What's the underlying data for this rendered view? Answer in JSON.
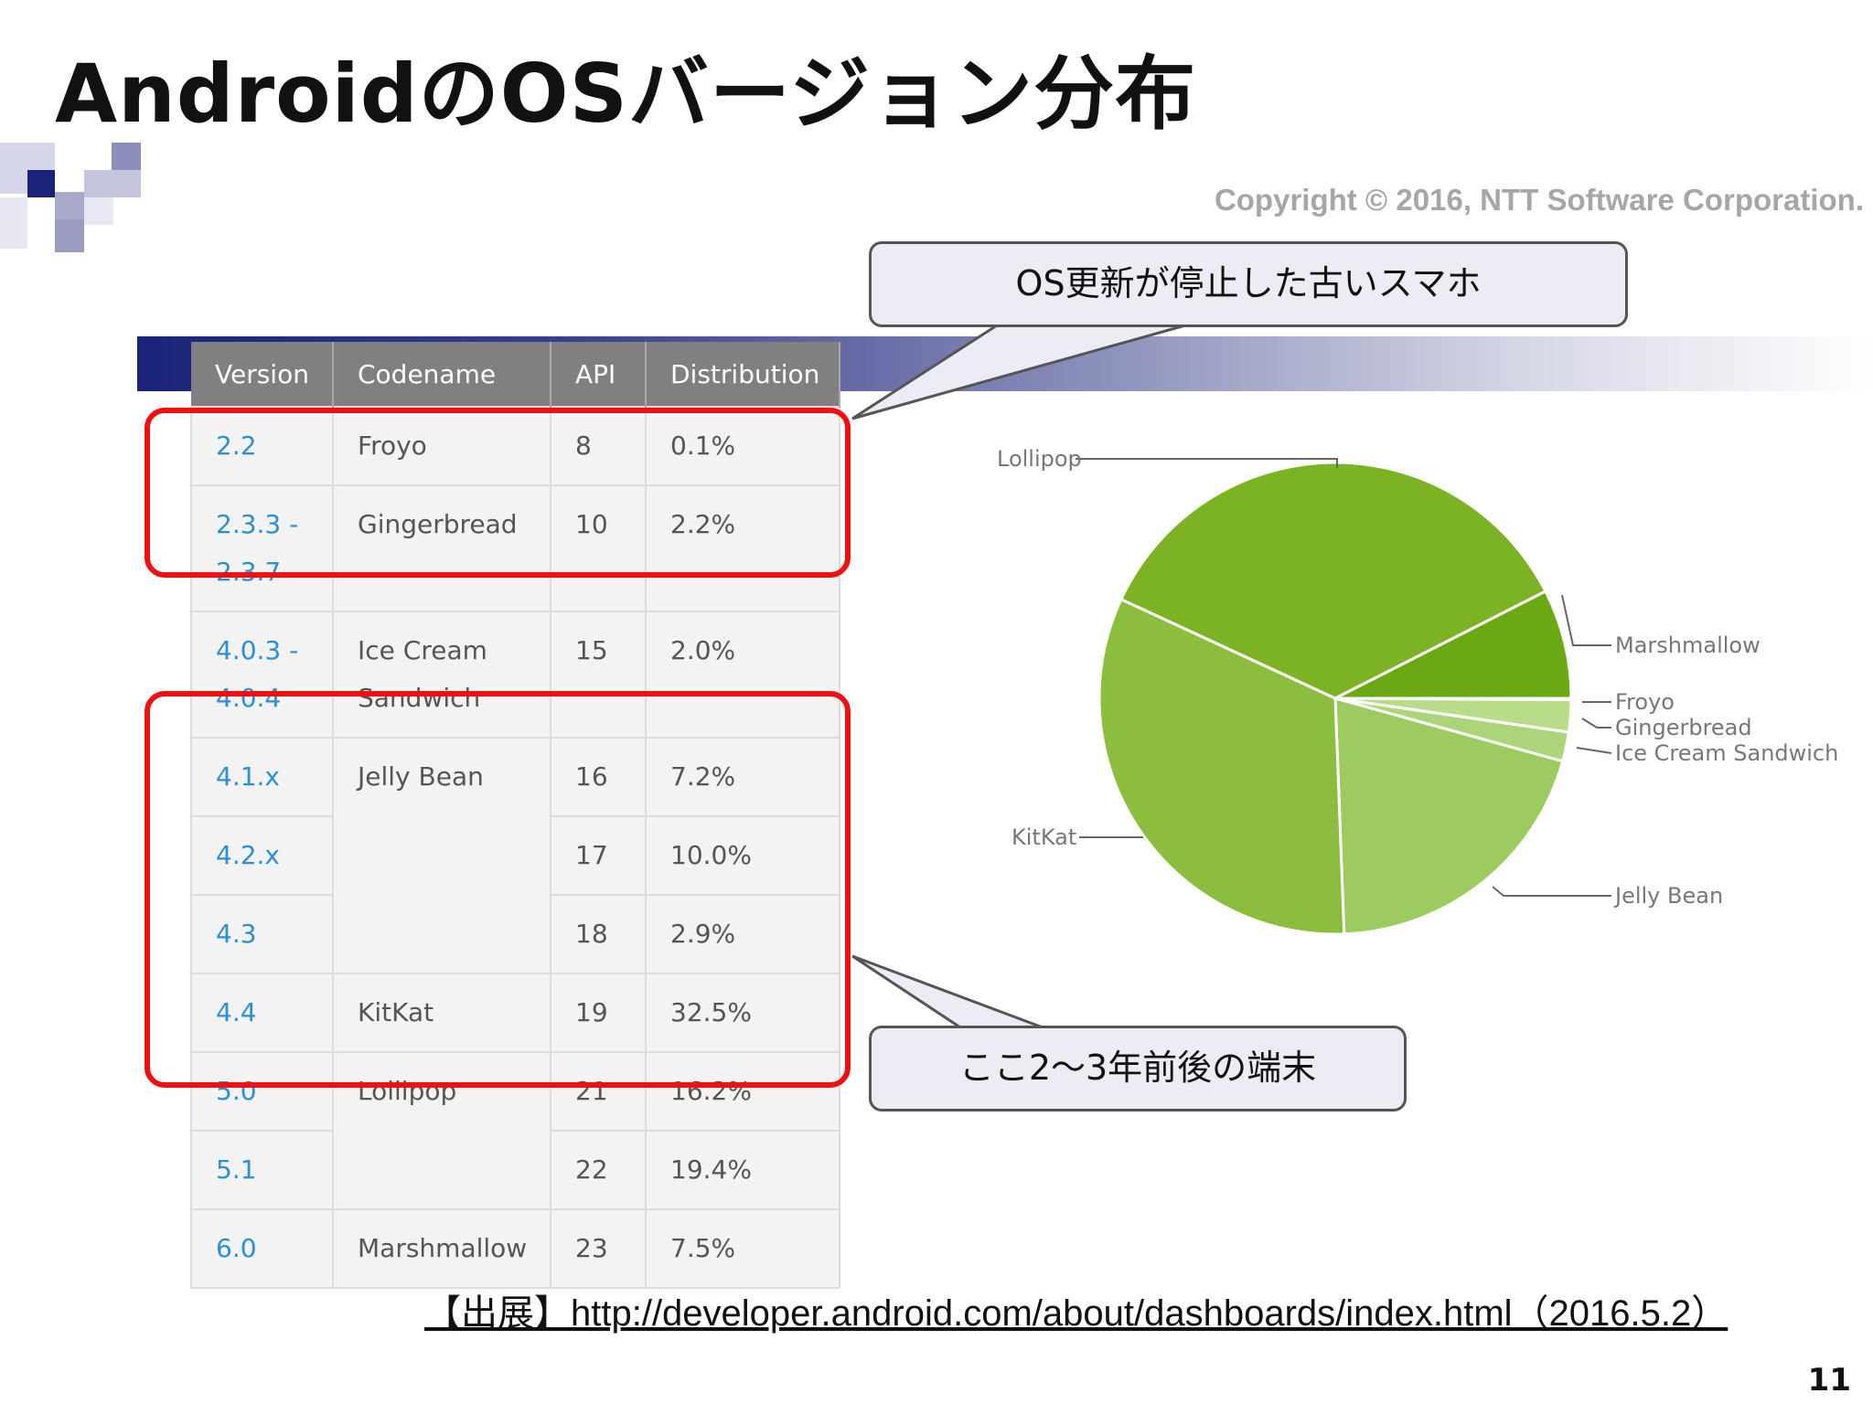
{
  "slide": {
    "title": "AndroidのOSバージョン分布",
    "copyright": "Copyright © 2016, NTT Software Corporation.",
    "source": "【出展】http://developer.android.com/about/dashboards/index.html（2016.5.2）",
    "page_number": "11"
  },
  "callouts": {
    "old": "OS更新が停止した古いスマホ",
    "recent": "ここ2～3年前後の端末"
  },
  "table": {
    "headers": [
      "Version",
      "Codename",
      "API",
      "Distribution"
    ],
    "rows": [
      {
        "version": "2.2",
        "codename": "Froyo",
        "api": "8",
        "distribution": "0.1%"
      },
      {
        "version": "2.3.3 - 2.3.7",
        "codename": "Gingerbread",
        "api": "10",
        "distribution": "2.2%"
      },
      {
        "version": "4.0.3 - 4.0.4",
        "codename": "Ice Cream Sandwich",
        "api": "15",
        "distribution": "2.0%"
      },
      {
        "version": "4.1.x",
        "codename": "Jelly Bean",
        "api": "16",
        "distribution": "7.2%"
      },
      {
        "version": "4.2.x",
        "codename": "",
        "api": "17",
        "distribution": "10.0%"
      },
      {
        "version": "4.3",
        "codename": "",
        "api": "18",
        "distribution": "2.9%"
      },
      {
        "version": "4.4",
        "codename": "KitKat",
        "api": "19",
        "distribution": "32.5%"
      },
      {
        "version": "5.0",
        "codename": "Lollipop",
        "api": "21",
        "distribution": "16.2%"
      },
      {
        "version": "5.1",
        "codename": "",
        "api": "22",
        "distribution": "19.4%"
      },
      {
        "version": "6.0",
        "codename": "Marshmallow",
        "api": "23",
        "distribution": "7.5%"
      }
    ]
  },
  "colors": {
    "header_bg": "#808080",
    "version_link": "#2a8fd6",
    "highlight_red": "#ee1111",
    "callout_bg": "#ececf4"
  },
  "chart_data": {
    "type": "pie",
    "categories": [
      "Froyo",
      "Gingerbread",
      "Ice Cream Sandwich",
      "Jelly Bean",
      "KitKat",
      "Lollipop",
      "Marshmallow"
    ],
    "values": [
      0.1,
      2.2,
      2.0,
      20.1,
      32.5,
      35.6,
      7.5
    ],
    "colors": [
      "#c9e4a4",
      "#b9dc8a",
      "#acd57a",
      "#9ccc5f",
      "#8bbd3e",
      "#7cb324",
      "#6aa814"
    ],
    "start_angle_deg": 0,
    "direction": "clockwise",
    "legend": "labels with leader lines"
  }
}
